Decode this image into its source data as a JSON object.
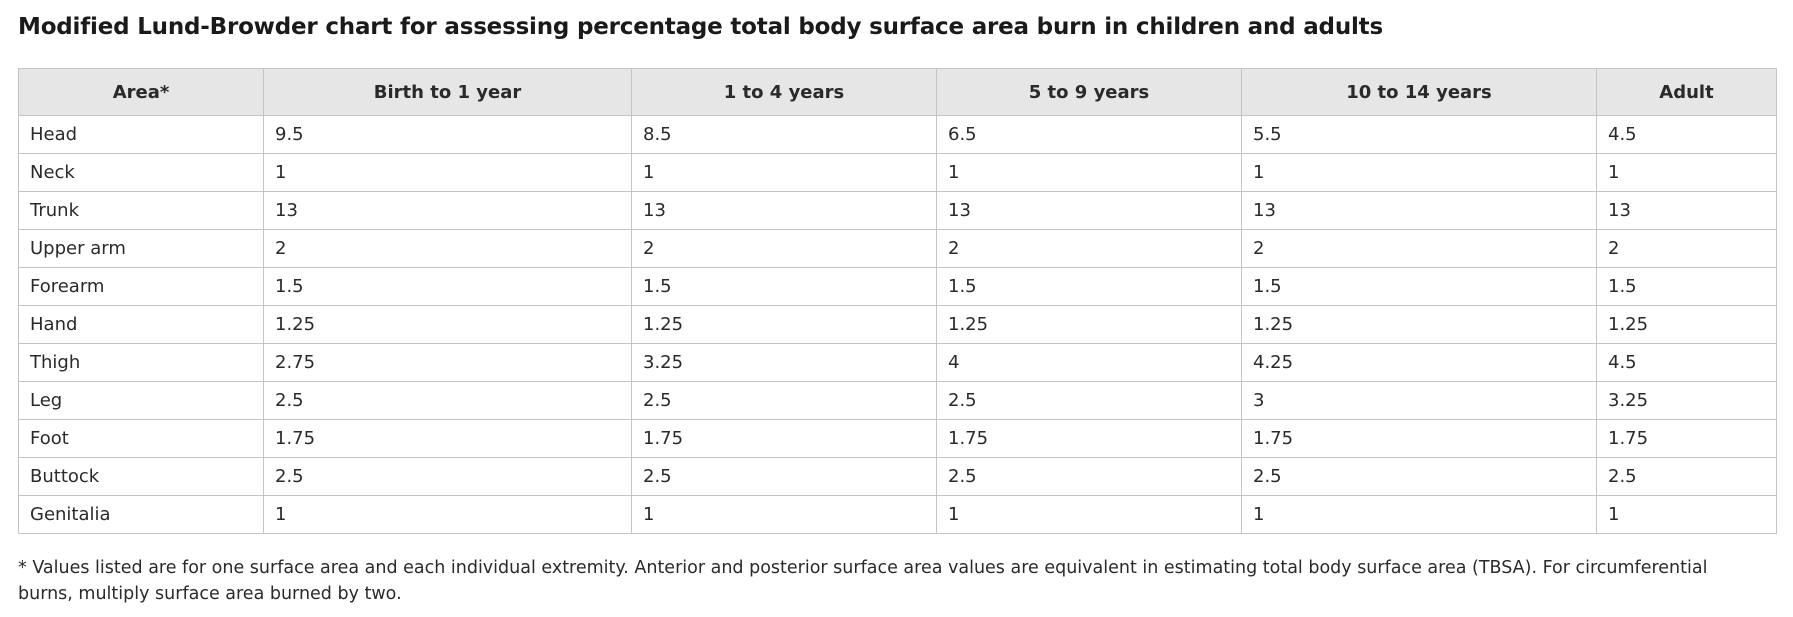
{
  "title": "Modified Lund-Browder chart for assessing percentage total body surface area burn in children and adults",
  "table": {
    "headers": [
      "Area*",
      "Birth to 1 year",
      "1 to 4 years",
      "5 to 9 years",
      "10 to 14 years",
      "Adult"
    ],
    "rows": [
      [
        "Head",
        "9.5",
        "8.5",
        "6.5",
        "5.5",
        "4.5"
      ],
      [
        "Neck",
        "1",
        "1",
        "1",
        "1",
        "1"
      ],
      [
        "Trunk",
        "13",
        "13",
        "13",
        "13",
        "13"
      ],
      [
        "Upper arm",
        "2",
        "2",
        "2",
        "2",
        "2"
      ],
      [
        "Forearm",
        "1.5",
        "1.5",
        "1.5",
        "1.5",
        "1.5"
      ],
      [
        "Hand",
        "1.25",
        "1.25",
        "1.25",
        "1.25",
        "1.25"
      ],
      [
        "Thigh",
        "2.75",
        "3.25",
        "4",
        "4.25",
        "4.5"
      ],
      [
        "Leg",
        "2.5",
        "2.5",
        "2.5",
        "3",
        "3.25"
      ],
      [
        "Foot",
        "1.75",
        "1.75",
        "1.75",
        "1.75",
        "1.75"
      ],
      [
        "Buttock",
        "2.5",
        "2.5",
        "2.5",
        "2.5",
        "2.5"
      ],
      [
        "Genitalia",
        "1",
        "1",
        "1",
        "1",
        "1"
      ]
    ]
  },
  "footnote": "* Values listed are for one surface area and each individual extremity. Anterior and posterior surface area values are equivalent in estimating total body surface area (TBSA). For circumferential burns, multiply surface area burned by two."
}
